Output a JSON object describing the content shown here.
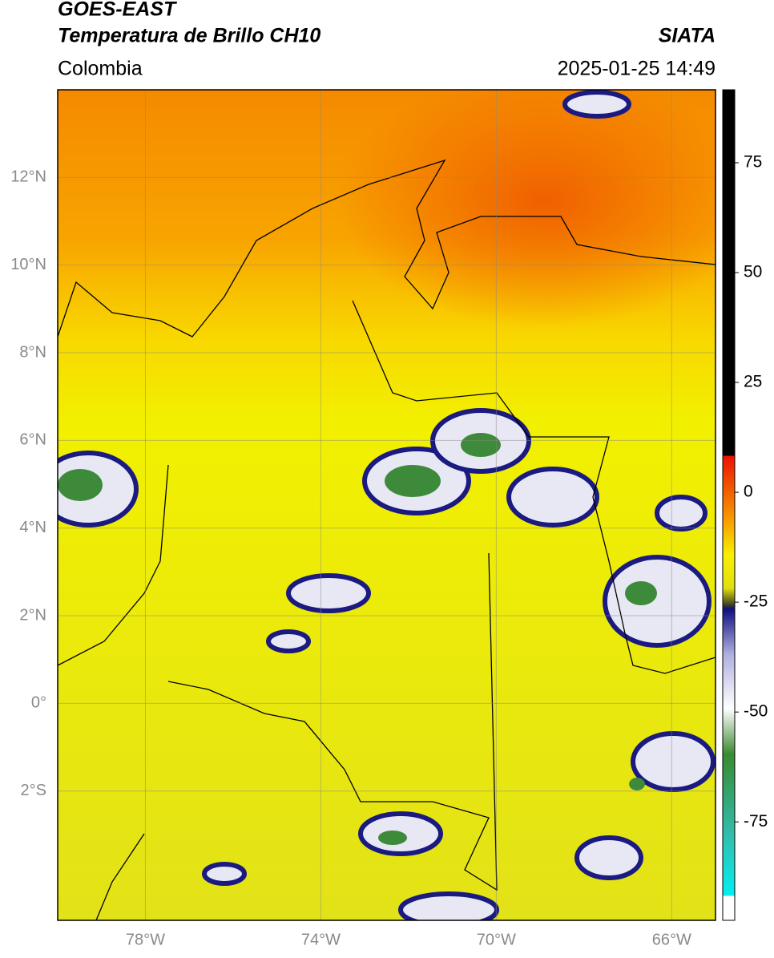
{
  "header": {
    "title_line1": "GOES-EAST",
    "title_line2": "Temperatura de Brillo CH10",
    "source": "SIATA",
    "region": "Colombia",
    "timestamp": "2025-01-25 14:49"
  },
  "map": {
    "lat_lim": [
      -4.95,
      14.0
    ],
    "lon_lim": [
      -80,
      -65
    ],
    "lat_ticks": [
      {
        "value": 12,
        "label": "12°N"
      },
      {
        "value": 10,
        "label": "10°N"
      },
      {
        "value": 8,
        "label": "8°N"
      },
      {
        "value": 6,
        "label": "6°N"
      },
      {
        "value": 4,
        "label": "4°N"
      },
      {
        "value": 2,
        "label": "2°N"
      },
      {
        "value": 0,
        "label": "0°"
      },
      {
        "value": -2,
        "label": "2°S"
      }
    ],
    "lon_ticks": [
      {
        "value": -78,
        "label": "78°W"
      },
      {
        "value": -74,
        "label": "74°W"
      },
      {
        "value": -70,
        "label": "70°W"
      },
      {
        "value": -66,
        "label": "66°W"
      }
    ]
  },
  "colorbar": {
    "lim": [
      -97.4,
      91.6
    ],
    "ticks": [
      75,
      50,
      25,
      0,
      -25,
      -50,
      -75
    ]
  }
}
